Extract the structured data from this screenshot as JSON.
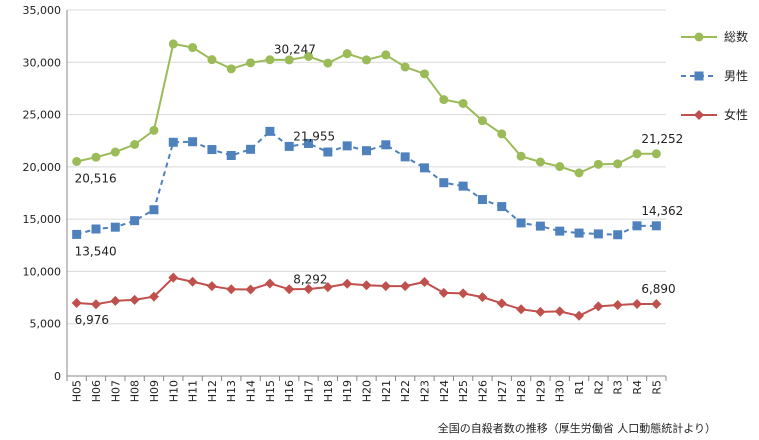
{
  "chart_data": {
    "type": "line",
    "title": "",
    "xlabel": "",
    "ylabel": "",
    "ylim": [
      0,
      35000
    ],
    "yticks": [
      0,
      5000,
      10000,
      15000,
      20000,
      25000,
      30000,
      35000
    ],
    "ytick_labels": [
      "0",
      "5,000",
      "10,000",
      "15,000",
      "20,000",
      "25,000",
      "30,000",
      "35,000"
    ],
    "grid": true,
    "legend_position": "right",
    "categories": [
      "H05",
      "H06",
      "H07",
      "H08",
      "H09",
      "H10",
      "H11",
      "H12",
      "H13",
      "H14",
      "H15",
      "H16",
      "H17",
      "H18",
      "H19",
      "H20",
      "H21",
      "H22",
      "H23",
      "H24",
      "H25",
      "H26",
      "H27",
      "H28",
      "H29",
      "H30",
      "R1",
      "R2",
      "R3",
      "R4",
      "R5"
    ],
    "series": [
      {
        "name": "総数",
        "color": "#9bbb59",
        "line_style": "solid",
        "marker": "circle",
        "values": [
          20516,
          20923,
          21420,
          22138,
          23494,
          31755,
          31413,
          30251,
          29375,
          29949,
          30247,
          30227,
          30553,
          29921,
          30827,
          30229,
          30707,
          29554,
          28896,
          26433,
          26063,
          24417,
          23152,
          21017,
          20465,
          20031,
          19425,
          20243,
          20291,
          21252,
          21252
        ]
      },
      {
        "name": "男性",
        "color": "#4f81bd",
        "line_style": "dashed",
        "marker": "square",
        "values": [
          13540,
          14058,
          14231,
          14853,
          15901,
          22349,
          22402,
          21656,
          21085,
          21677,
          23396,
          21955,
          22236,
          21419,
          22007,
          21546,
          22109,
          20955,
          19904,
          18485,
          18158,
          16875,
          16202,
          14639,
          14333,
          13854,
          13668,
          13588,
          13507,
          14362,
          14362
        ]
      },
      {
        "name": "女性",
        "color": "#c0504d",
        "line_style": "solid",
        "marker": "diamond",
        "values": [
          6976,
          6865,
          7189,
          7285,
          7593,
          9406,
          9011,
          8595,
          8290,
          8272,
          8851,
          8292,
          8317,
          8502,
          8820,
          8683,
          8598,
          8599,
          8992,
          7948,
          7905,
          7542,
          6950,
          6378,
          6132,
          6177,
          5757,
          6655,
          6784,
          6890,
          6890
        ]
      }
    ],
    "data_labels": [
      {
        "series": "総数",
        "index": 0,
        "text": "20,516"
      },
      {
        "series": "総数",
        "index": 10,
        "text": "30,247"
      },
      {
        "series": "総数",
        "index": 30,
        "text": "21,252"
      },
      {
        "series": "男性",
        "index": 0,
        "text": "13,540"
      },
      {
        "series": "男性",
        "index": 11,
        "text": "21,955"
      },
      {
        "series": "男性",
        "index": 30,
        "text": "14,362"
      },
      {
        "series": "女性",
        "index": 0,
        "text": "6,976"
      },
      {
        "series": "女性",
        "index": 11,
        "text": "8,292"
      },
      {
        "series": "女性",
        "index": 30,
        "text": "6,890"
      }
    ],
    "note": "全国の自殺者数の推移（厚生労働省 人口動態統計より）"
  }
}
